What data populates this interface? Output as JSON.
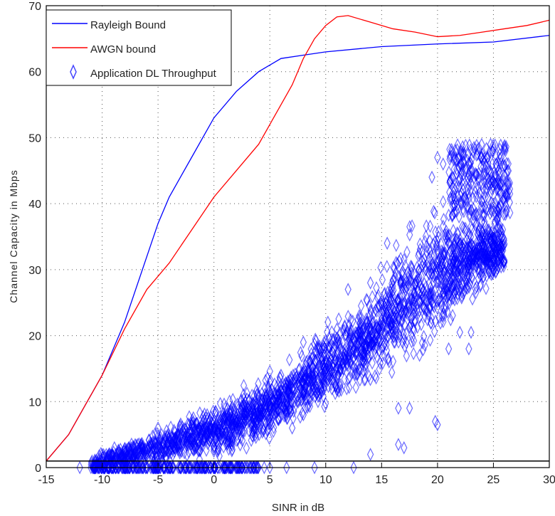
{
  "chart_data": {
    "type": "scatter",
    "title": "",
    "xlabel": "SINR in dB",
    "ylabel": "Channel Capacity in Mbps",
    "xlim": [
      -15,
      30
    ],
    "ylim": [
      0,
      70
    ],
    "xticks": [
      -15,
      -10,
      -5,
      0,
      5,
      10,
      15,
      20,
      25,
      30
    ],
    "yticks": [
      0,
      10,
      20,
      30,
      40,
      50,
      60,
      70
    ],
    "grid": true,
    "legend_position": "top-left",
    "reference_line_y": 1,
    "series": [
      {
        "name": "Rayleigh Bound",
        "type": "line",
        "color": "#0000ff",
        "x": [
          -15,
          -13,
          -12,
          -10,
          -8,
          -6,
          -5,
          -4,
          -2,
          0,
          2,
          4,
          6,
          8,
          10,
          15,
          20,
          25,
          30
        ],
        "y": [
          1,
          5,
          8,
          14,
          22,
          32,
          37,
          41,
          47,
          53,
          57,
          60,
          62,
          62.5,
          63,
          63.8,
          64.2,
          64.5,
          65.5
        ]
      },
      {
        "name": "AWGN bound",
        "type": "line",
        "color": "#ff0000",
        "x": [
          -15,
          -13,
          -12,
          -10,
          -8,
          -6,
          -4,
          -2,
          0,
          2,
          4,
          5,
          6,
          7,
          8,
          9,
          10,
          11,
          12,
          14,
          16,
          18,
          20,
          22,
          24,
          26,
          28,
          30
        ],
        "y": [
          1,
          5,
          8,
          14,
          21,
          27,
          31,
          36,
          41,
          45,
          49,
          52,
          55,
          58,
          62,
          65,
          67,
          68.3,
          68.5,
          67.5,
          66.5,
          66,
          65.3,
          65.5,
          66,
          66.5,
          67,
          67.8
        ]
      },
      {
        "name": "Application DL Throughput",
        "type": "scatter",
        "color": "#0000ff",
        "marker": "diamond",
        "trend_x": [
          -11,
          -8,
          -5,
          -2,
          0,
          3,
          5,
          8,
          10,
          13,
          15,
          17,
          19,
          20,
          21,
          22,
          24,
          26
        ],
        "trend_y": [
          0.5,
          1.8,
          3,
          4.5,
          5.5,
          7.5,
          9.5,
          12.5,
          15,
          18.5,
          21.5,
          25,
          28,
          29.5,
          30,
          31,
          33,
          33
        ],
        "trend_spread": [
          0.8,
          1.2,
          1.8,
          2.2,
          2.5,
          3,
          3.2,
          3.5,
          4,
          4.5,
          5.5,
          6,
          7,
          7,
          6,
          5,
          4,
          3
        ],
        "cluster_high": {
          "x": [
            21,
            26.5
          ],
          "y": [
            38,
            49
          ]
        },
        "zero_points_x": [
          -12,
          -11,
          -10,
          -9,
          -8,
          -7,
          -6,
          -5,
          -4,
          -3,
          -2.5,
          -1,
          0,
          1,
          2,
          3,
          3.5,
          4.5,
          5,
          6.5,
          9,
          12.5
        ],
        "outliers": [
          [
            14,
            2
          ],
          [
            16.5,
            3.5
          ],
          [
            17,
            3
          ],
          [
            17.5,
            9
          ],
          [
            16.5,
            9
          ],
          [
            19.8,
            7
          ],
          [
            20,
            6.5
          ],
          [
            21,
            18
          ],
          [
            22,
            20.5
          ],
          [
            22.8,
            18
          ],
          [
            23,
            20.5
          ],
          [
            14,
            28
          ],
          [
            12,
            27
          ],
          [
            15.5,
            34
          ],
          [
            13,
            23
          ],
          [
            11,
            21
          ],
          [
            8,
            19
          ],
          [
            6,
            14
          ],
          [
            8,
            8
          ],
          [
            7,
            6
          ],
          [
            -5,
            6
          ],
          [
            -10,
            2
          ],
          [
            -3,
            4
          ],
          [
            20,
            47
          ],
          [
            19.5,
            44
          ],
          [
            20.5,
            46
          ]
        ]
      }
    ]
  }
}
